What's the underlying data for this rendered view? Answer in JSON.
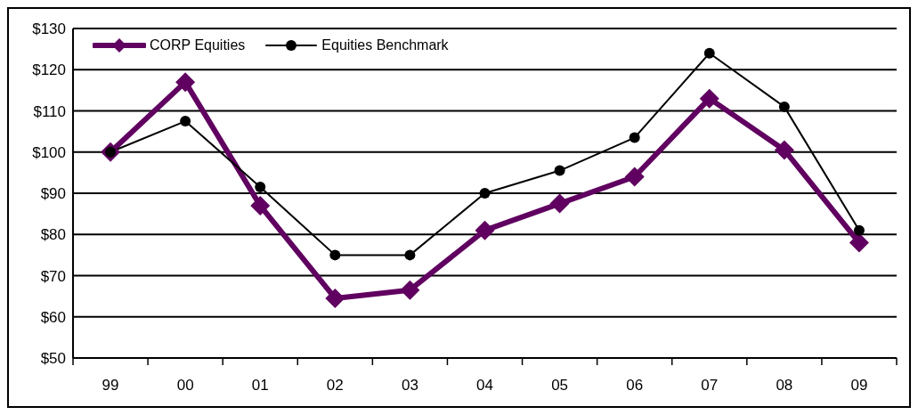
{
  "chart_data": {
    "type": "line",
    "categories": [
      "99",
      "00",
      "01",
      "02",
      "03",
      "04",
      "05",
      "06",
      "07",
      "08",
      "09"
    ],
    "series": [
      {
        "name": "CORP Equities",
        "color": "#600060",
        "marker": "diamond",
        "values": [
          100,
          117,
          87,
          64.5,
          66.5,
          81,
          87.5,
          94,
          113,
          100.5,
          78
        ]
      },
      {
        "name": "Equities Benchmark",
        "color": "#000000",
        "marker": "circle",
        "values": [
          100,
          107.5,
          91.5,
          75,
          75,
          90,
          95.5,
          103.5,
          124,
          111,
          81
        ]
      }
    ],
    "ylim": [
      50,
      130
    ],
    "yticks": [
      {
        "value": 50,
        "label": "$50"
      },
      {
        "value": 60,
        "label": "$60"
      },
      {
        "value": 70,
        "label": "$70"
      },
      {
        "value": 80,
        "label": "$80"
      },
      {
        "value": 90,
        "label": "$90"
      },
      {
        "value": 100,
        "label": "$100"
      },
      {
        "value": 110,
        "label": "$110"
      },
      {
        "value": 120,
        "label": "$120"
      },
      {
        "value": 130,
        "label": "$130"
      }
    ],
    "grid": "y",
    "legend": "top left"
  }
}
